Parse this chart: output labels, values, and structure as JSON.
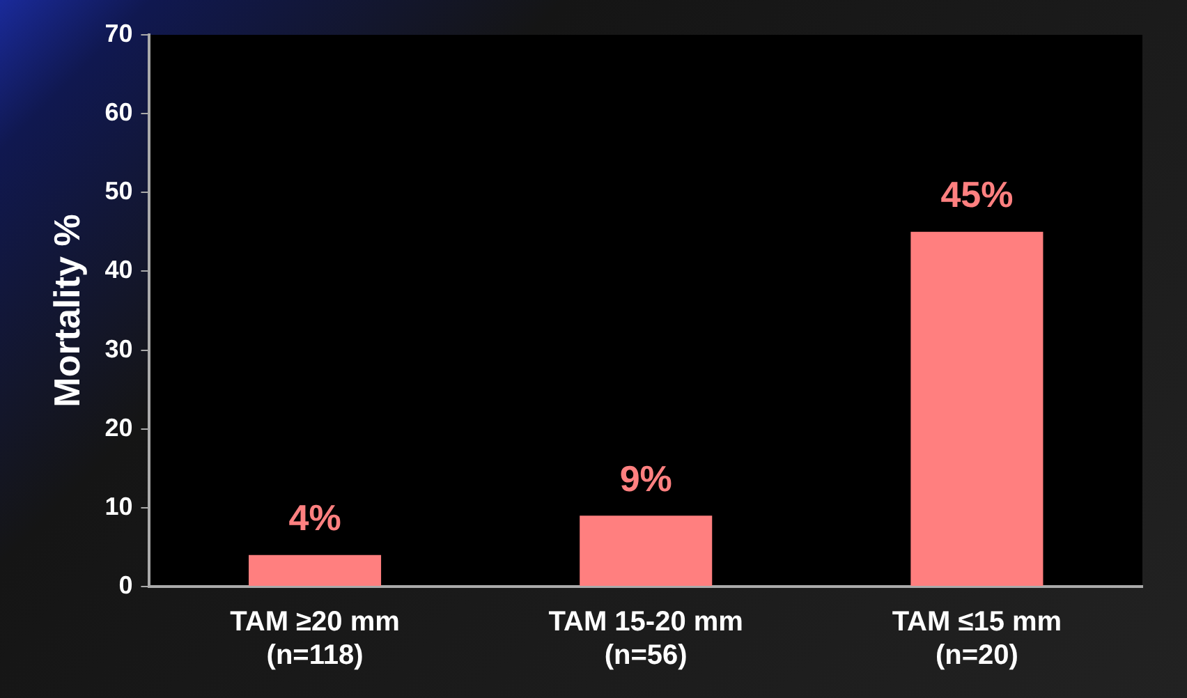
{
  "chart_data": {
    "type": "bar",
    "ylabel": "Mortality %",
    "categories": [
      "TAM ≥20 mm\n(n=118)",
      "TAM 15-20 mm\n(n=56)",
      "TAM ≤15 mm\n(n=20)"
    ],
    "series": [
      {
        "color": "#ff7f7f",
        "values": [
          4,
          9,
          45
        ],
        "value_labels": [
          "4%",
          "9%",
          "45%"
        ]
      }
    ],
    "ylim": [
      0,
      70
    ],
    "yticks": [
      0,
      10,
      20,
      30,
      40,
      50,
      60,
      70
    ],
    "grid": false,
    "legend": false
  }
}
